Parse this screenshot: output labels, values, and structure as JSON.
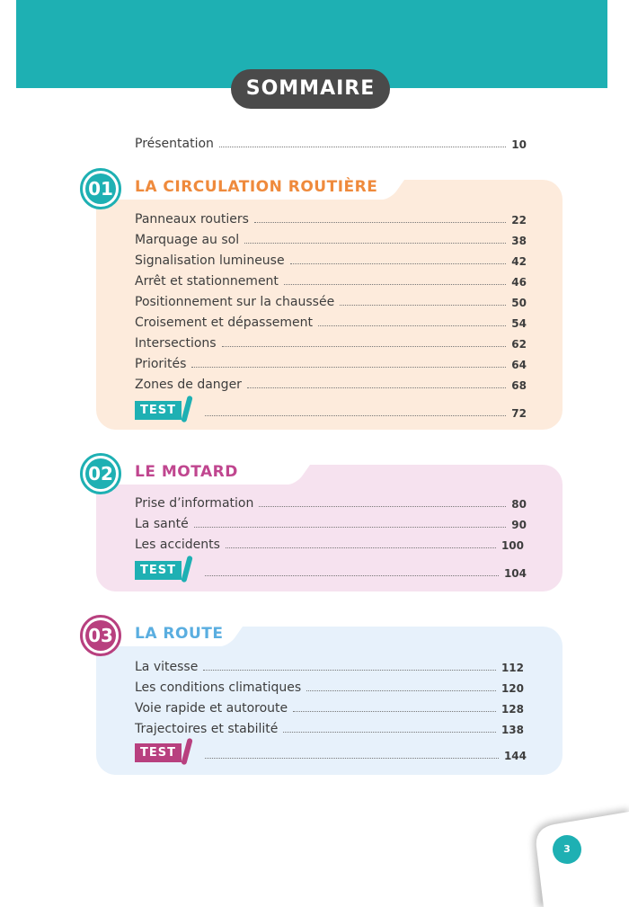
{
  "title": "SOMMAIRE",
  "intro": {
    "label": "Présentation",
    "page": "10"
  },
  "sections": [
    {
      "number": "01",
      "title": "LA CIRCULATION ROUTIÈRE",
      "color": "#ef8a3c",
      "bg": "#fdebdc",
      "accent": "#1eb0b3",
      "items": [
        {
          "label": "Panneaux routiers",
          "page": "22"
        },
        {
          "label": "Marquage au sol",
          "page": "38"
        },
        {
          "label": "Signalisation lumineuse",
          "page": "42"
        },
        {
          "label": "Arrêt et stationnement",
          "page": "46"
        },
        {
          "label": "Positionnement sur la chaussée",
          "page": "50"
        },
        {
          "label": "Croisement et dépassement",
          "page": "54"
        },
        {
          "label": "Intersections",
          "page": "62"
        },
        {
          "label": "Priorités",
          "page": "64"
        },
        {
          "label": "Zones de danger",
          "page": "68"
        }
      ],
      "test": {
        "label": "TEST",
        "page": "72"
      }
    },
    {
      "number": "02",
      "title": "LE MOTARD",
      "color": "#c0468f",
      "bg": "#f6e2ef",
      "accent": "#1eb0b3",
      "items": [
        {
          "label": "Prise d’information",
          "page": "80"
        },
        {
          "label": "La santé",
          "page": "90"
        },
        {
          "label": "Les accidents",
          "page": "100"
        }
      ],
      "test": {
        "label": "TEST",
        "page": "104"
      }
    },
    {
      "number": "03",
      "title": "LA ROUTE",
      "color": "#5aaee0",
      "bg": "#e7f1fb",
      "accent": "#b8407f",
      "items": [
        {
          "label": "La vitesse",
          "page": "112"
        },
        {
          "label": "Les conditions climatiques",
          "page": "120"
        },
        {
          "label": "Voie rapide et autoroute",
          "page": "128"
        },
        {
          "label": "Trajectoires et stabilité",
          "page": "138"
        }
      ],
      "test": {
        "label": "TEST",
        "page": "144"
      }
    }
  ],
  "page_number": "3"
}
